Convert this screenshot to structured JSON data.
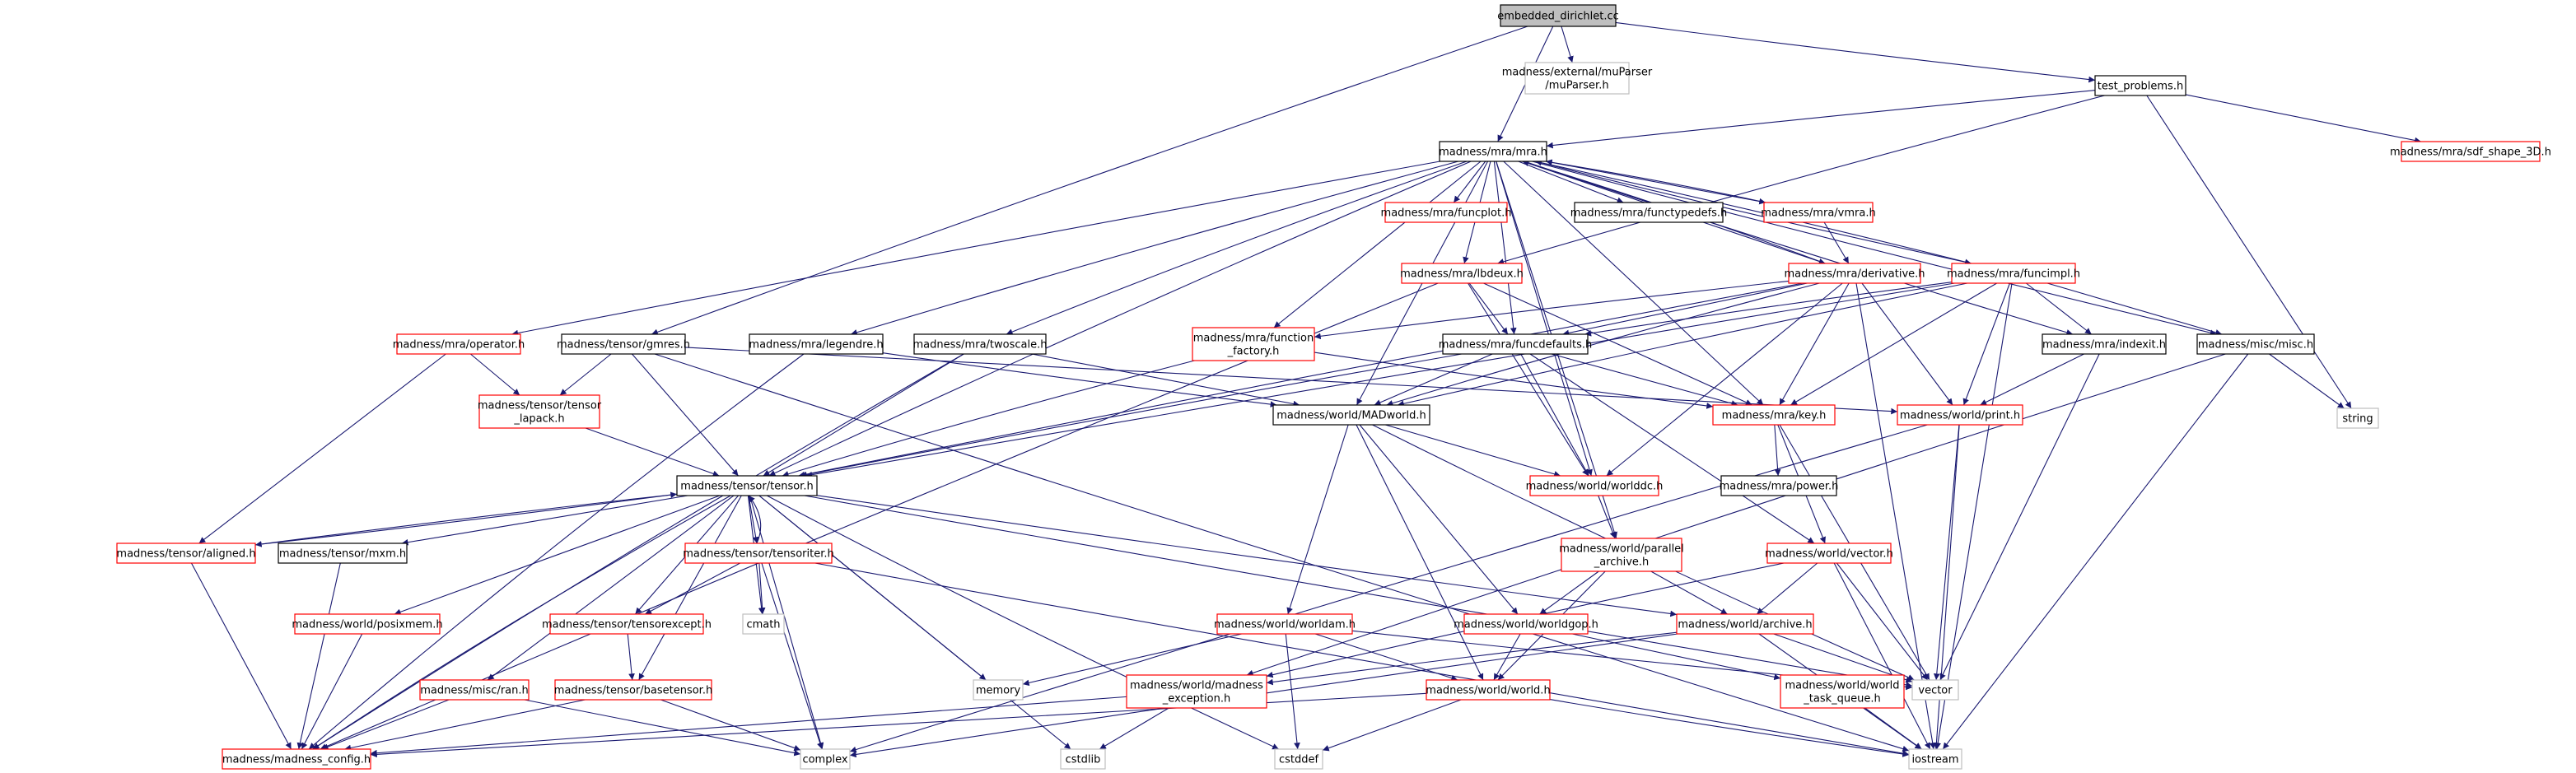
{
  "title": "embedded_dirichlet.cc",
  "colors": {
    "edge": "#191970",
    "root_fill": "#bfbfbf",
    "border_black": "#000000",
    "border_red": "#ff0000",
    "border_gray": "#bfbfbf"
  },
  "nodes": {
    "root": {
      "label": "embedded_dirichlet.cc",
      "style": "root"
    },
    "muparser": {
      "label": "madness/external/muParser\n/muParser.h",
      "style": "gray"
    },
    "test_problems": {
      "label": "test_problems.h",
      "style": "black"
    },
    "sdf_shape": {
      "label": "madness/mra/sdf_shape_3D.h",
      "style": "red"
    },
    "mra": {
      "label": "madness/mra/mra.h",
      "style": "black"
    },
    "funcplot": {
      "label": "madness/mra/funcplot.h",
      "style": "red"
    },
    "functypedefs": {
      "label": "madness/mra/functypedefs.h",
      "style": "black"
    },
    "vmra": {
      "label": "madness/mra/vmra.h",
      "style": "red"
    },
    "lbdeux": {
      "label": "madness/mra/lbdeux.h",
      "style": "red"
    },
    "derivative": {
      "label": "madness/mra/derivative.h",
      "style": "red"
    },
    "funcimpl": {
      "label": "madness/mra/funcimpl.h",
      "style": "red"
    },
    "operator": {
      "label": "madness/mra/operator.h",
      "style": "red"
    },
    "gmres": {
      "label": "madness/tensor/gmres.h",
      "style": "black"
    },
    "legendre": {
      "label": "madness/mra/legendre.h",
      "style": "black"
    },
    "twoscale": {
      "label": "madness/mra/twoscale.h",
      "style": "black"
    },
    "function_factory": {
      "label": "madness/mra/function\n_factory.h",
      "style": "red"
    },
    "funcdefaults": {
      "label": "madness/mra/funcdefaults.h",
      "style": "black"
    },
    "indexit": {
      "label": "madness/mra/indexit.h",
      "style": "black"
    },
    "misc": {
      "label": "madness/misc/misc.h",
      "style": "black"
    },
    "string": {
      "label": "string",
      "style": "gray"
    },
    "tensor_lapack": {
      "label": "madness/tensor/tensor\n_lapack.h",
      "style": "red"
    },
    "madworld": {
      "label": "madness/world/MADworld.h",
      "style": "black"
    },
    "key": {
      "label": "madness/mra/key.h",
      "style": "red"
    },
    "print": {
      "label": "madness/world/print.h",
      "style": "red"
    },
    "tensor": {
      "label": "madness/tensor/tensor.h",
      "style": "black"
    },
    "worlddc": {
      "label": "madness/world/worlddc.h",
      "style": "red"
    },
    "power": {
      "label": "madness/mra/power.h",
      "style": "black"
    },
    "aligned": {
      "label": "madness/tensor/aligned.h",
      "style": "red"
    },
    "mxm": {
      "label": "madness/tensor/mxm.h",
      "style": "black"
    },
    "tensoriter": {
      "label": "madness/tensor/tensoriter.h",
      "style": "red"
    },
    "parallel_archive": {
      "label": "madness/world/parallel\n_archive.h",
      "style": "red"
    },
    "vector_h": {
      "label": "madness/world/vector.h",
      "style": "red"
    },
    "posixmem": {
      "label": "madness/world/posixmem.h",
      "style": "red"
    },
    "tensorexcept": {
      "label": "madness/tensor/tensorexcept.h",
      "style": "red"
    },
    "cmath": {
      "label": "cmath",
      "style": "gray"
    },
    "worldam": {
      "label": "madness/world/worldam.h",
      "style": "red"
    },
    "worldgop": {
      "label": "madness/world/worldgop.h",
      "style": "red"
    },
    "archive": {
      "label": "madness/world/archive.h",
      "style": "red"
    },
    "memory": {
      "label": "memory",
      "style": "gray"
    },
    "vector": {
      "label": "vector",
      "style": "gray"
    },
    "ran": {
      "label": "madness/misc/ran.h",
      "style": "red"
    },
    "basetensor": {
      "label": "madness/tensor/basetensor.h",
      "style": "red"
    },
    "madness_exception": {
      "label": "madness/world/madness\n_exception.h",
      "style": "red"
    },
    "world": {
      "label": "madness/world/world.h",
      "style": "red"
    },
    "world_task_queue": {
      "label": "madness/world/world\n_task_queue.h",
      "style": "red"
    },
    "madness_config": {
      "label": "madness/madness_config.h",
      "style": "red"
    },
    "complex": {
      "label": "complex",
      "style": "gray"
    },
    "cstdlib": {
      "label": "cstdlib",
      "style": "gray"
    },
    "cstddef": {
      "label": "cstddef",
      "style": "gray"
    },
    "iostream": {
      "label": "iostream",
      "style": "gray"
    }
  },
  "edges": [
    [
      "root",
      "muparser"
    ],
    [
      "root",
      "mra"
    ],
    [
      "root",
      "test_problems"
    ],
    [
      "root",
      "gmres"
    ],
    [
      "test_problems",
      "mra"
    ],
    [
      "test_problems",
      "sdf_shape"
    ],
    [
      "test_problems",
      "lbdeux"
    ],
    [
      "test_problems",
      "string"
    ],
    [
      "mra",
      "funcplot"
    ],
    [
      "mra",
      "functypedefs"
    ],
    [
      "mra",
      "vmra"
    ],
    [
      "mra",
      "lbdeux"
    ],
    [
      "mra",
      "derivative"
    ],
    [
      "mra",
      "funcimpl"
    ],
    [
      "mra",
      "operator"
    ],
    [
      "mra",
      "legendre"
    ],
    [
      "mra",
      "twoscale"
    ],
    [
      "mra",
      "function_factory"
    ],
    [
      "mra",
      "funcdefaults"
    ],
    [
      "mra",
      "indexit"
    ],
    [
      "mra",
      "misc"
    ],
    [
      "mra",
      "madworld"
    ],
    [
      "mra",
      "key"
    ],
    [
      "mra",
      "tensor"
    ],
    [
      "mra",
      "worlddc"
    ],
    [
      "mra",
      "parallel_archive"
    ],
    [
      "vmra",
      "mra"
    ],
    [
      "vmra",
      "derivative"
    ],
    [
      "derivative",
      "mra"
    ],
    [
      "funcimpl",
      "mra"
    ],
    [
      "lbdeux",
      "funcdefaults"
    ],
    [
      "lbdeux",
      "key"
    ],
    [
      "lbdeux",
      "worlddc"
    ],
    [
      "lbdeux",
      "madness_config"
    ],
    [
      "derivative",
      "function_factory"
    ],
    [
      "derivative",
      "funcdefaults"
    ],
    [
      "derivative",
      "key"
    ],
    [
      "derivative",
      "print"
    ],
    [
      "derivative",
      "tensor"
    ],
    [
      "derivative",
      "madworld"
    ],
    [
      "derivative",
      "worlddc"
    ],
    [
      "derivative",
      "iostream"
    ],
    [
      "funcimpl",
      "funcdefaults"
    ],
    [
      "funcimpl",
      "indexit"
    ],
    [
      "funcimpl",
      "misc"
    ],
    [
      "funcimpl",
      "print"
    ],
    [
      "funcimpl",
      "key"
    ],
    [
      "funcimpl",
      "madworld"
    ],
    [
      "funcimpl",
      "tensor"
    ],
    [
      "funcimpl",
      "iostream"
    ],
    [
      "operator",
      "tensor_lapack"
    ],
    [
      "operator",
      "aligned"
    ],
    [
      "gmres",
      "tensor_lapack"
    ],
    [
      "gmres",
      "tensor"
    ],
    [
      "gmres",
      "print"
    ],
    [
      "gmres",
      "iostream"
    ],
    [
      "legendre",
      "madworld"
    ],
    [
      "legendre",
      "madness_config"
    ],
    [
      "twoscale",
      "madworld"
    ],
    [
      "twoscale",
      "tensor"
    ],
    [
      "twoscale",
      "madness_config"
    ],
    [
      "function_factory",
      "key"
    ],
    [
      "function_factory",
      "tensor"
    ],
    [
      "funcdefaults",
      "madworld"
    ],
    [
      "funcdefaults",
      "key"
    ],
    [
      "funcdefaults",
      "worlddc"
    ],
    [
      "funcdefaults",
      "vector_h"
    ],
    [
      "funcdefaults",
      "tensor"
    ],
    [
      "indexit",
      "print"
    ],
    [
      "indexit",
      "vector"
    ],
    [
      "misc",
      "string"
    ],
    [
      "misc",
      "iostream"
    ],
    [
      "misc",
      "madness_exception"
    ],
    [
      "tensor_lapack",
      "tensor"
    ],
    [
      "madworld",
      "worlddc"
    ],
    [
      "madworld",
      "worldam"
    ],
    [
      "madworld",
      "worldgop"
    ],
    [
      "madworld",
      "world"
    ],
    [
      "madworld",
      "vector"
    ],
    [
      "key",
      "power"
    ],
    [
      "key",
      "vector_h"
    ],
    [
      "key",
      "vector"
    ],
    [
      "print",
      "vector"
    ],
    [
      "print",
      "iostream"
    ],
    [
      "print",
      "complex"
    ],
    [
      "worlddc",
      "parallel_archive"
    ],
    [
      "tensor",
      "aligned"
    ],
    [
      "tensor",
      "mxm"
    ],
    [
      "tensor",
      "tensoriter"
    ],
    [
      "tensor",
      "posixmem"
    ],
    [
      "tensor",
      "tensorexcept"
    ],
    [
      "tensor",
      "cmath"
    ],
    [
      "tensor",
      "memory"
    ],
    [
      "tensor",
      "basetensor"
    ],
    [
      "tensor",
      "ran"
    ],
    [
      "tensor",
      "madness_config"
    ],
    [
      "tensor",
      "complex"
    ],
    [
      "tensor",
      "cstdlib"
    ],
    [
      "tensor",
      "cstddef"
    ],
    [
      "tensor",
      "vector"
    ],
    [
      "tensor",
      "archive"
    ],
    [
      "aligned",
      "tensor"
    ],
    [
      "tensoriter",
      "tensor"
    ],
    [
      "aligned",
      "madness_config"
    ],
    [
      "mxm",
      "madness_config"
    ],
    [
      "tensoriter",
      "tensorexcept"
    ],
    [
      "tensoriter",
      "cmath"
    ],
    [
      "tensoriter",
      "complex"
    ],
    [
      "tensoriter",
      "iostream"
    ],
    [
      "parallel_archive",
      "archive"
    ],
    [
      "parallel_archive",
      "worldgop"
    ],
    [
      "parallel_archive",
      "world"
    ],
    [
      "vector_h",
      "archive"
    ],
    [
      "vector_h",
      "vector"
    ],
    [
      "vector_h",
      "iostream"
    ],
    [
      "vector_h",
      "madness_exception"
    ],
    [
      "posixmem",
      "madness_config"
    ],
    [
      "tensorexcept",
      "basetensor"
    ],
    [
      "worldam",
      "memory"
    ],
    [
      "worldam",
      "world"
    ],
    [
      "worldam",
      "cstddef"
    ],
    [
      "worldam",
      "vector"
    ],
    [
      "worldgop",
      "world"
    ],
    [
      "worldgop",
      "world_task_queue"
    ],
    [
      "archive",
      "madness_exception"
    ],
    [
      "archive",
      "vector"
    ],
    [
      "archive",
      "iostream"
    ],
    [
      "archive",
      "complex"
    ],
    [
      "ran",
      "madness_config"
    ],
    [
      "ran",
      "complex"
    ],
    [
      "basetensor",
      "madness_config"
    ],
    [
      "basetensor",
      "complex"
    ],
    [
      "madness_exception",
      "madness_config"
    ],
    [
      "madness_exception",
      "cstdlib"
    ],
    [
      "world",
      "madness_config"
    ],
    [
      "world",
      "cstddef"
    ],
    [
      "world",
      "iostream"
    ],
    [
      "world_task_queue",
      "iostream"
    ]
  ]
}
